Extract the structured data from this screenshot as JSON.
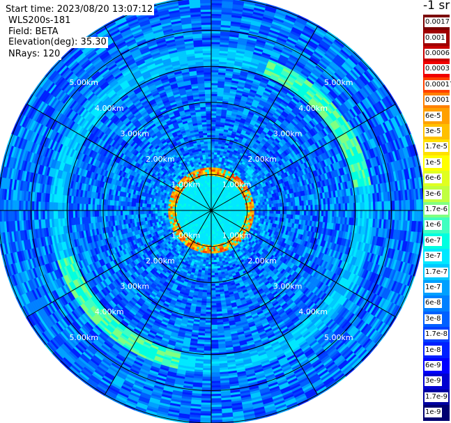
{
  "header": {
    "start_time": "Start time: 2023/08/20 13:07:12",
    "instrument": "WLS200s-181",
    "field": "Field: BETA",
    "elevation": "Elevation(deg): 35.30",
    "nrays": "NRays: 120"
  },
  "chart_data": {
    "type": "heatmap",
    "projection": "polar-ppi",
    "field": "BETA",
    "unit": "-1 sr",
    "max_range_km": 5.9,
    "range_ring_labels": [
      "2.00km",
      "3.00km",
      "4.00km",
      "5.00km"
    ],
    "inner_ring_labels": [
      "1.00km",
      "1.00km",
      "1.00km",
      "1.00km"
    ],
    "ring_radii_km": [
      1,
      2,
      3,
      4,
      5
    ],
    "radial_lines_every_deg": 30,
    "n_rays": 120,
    "colorbar": {
      "labels": [
        "0.0017",
        "0.001",
        "0.0006",
        "0.0003",
        "0.00017",
        "0.0001",
        "6e-5",
        "3e-5",
        "1.7e-5",
        "1e-5",
        "6e-6",
        "3e-6",
        "1.7e-6",
        "1e-6",
        "6e-7",
        "3e-7",
        "1.7e-7",
        "1e-7",
        "6e-8",
        "3e-8",
        "1.7e-8",
        "1e-8",
        "6e-9",
        "3e-9",
        "1.7e-9",
        "1e-9"
      ],
      "colors": [
        "#7a0000",
        "#a00000",
        "#c80000",
        "#f00000",
        "#ff4000",
        "#ff8000",
        "#ffa000",
        "#ffc000",
        "#ffe000",
        "#ffff00",
        "#e0ff20",
        "#c0ff40",
        "#80ff80",
        "#40ffc0",
        "#00ffe0",
        "#00e8ff",
        "#00c8ff",
        "#00a0ff",
        "#0080ff",
        "#0060ff",
        "#0040ff",
        "#0020ff",
        "#0000ff",
        "#0000d0",
        "#0000a0",
        "#000070"
      ]
    },
    "features": [
      {
        "name": "near-range-ring",
        "range_km": 1.05,
        "level": 5
      },
      {
        "name": "outer-aerosol-ring",
        "range_km": 4.25,
        "level": 13
      },
      {
        "name": "inner-homogeneous-disk",
        "range_km": 0.95,
        "level": 15
      }
    ]
  }
}
